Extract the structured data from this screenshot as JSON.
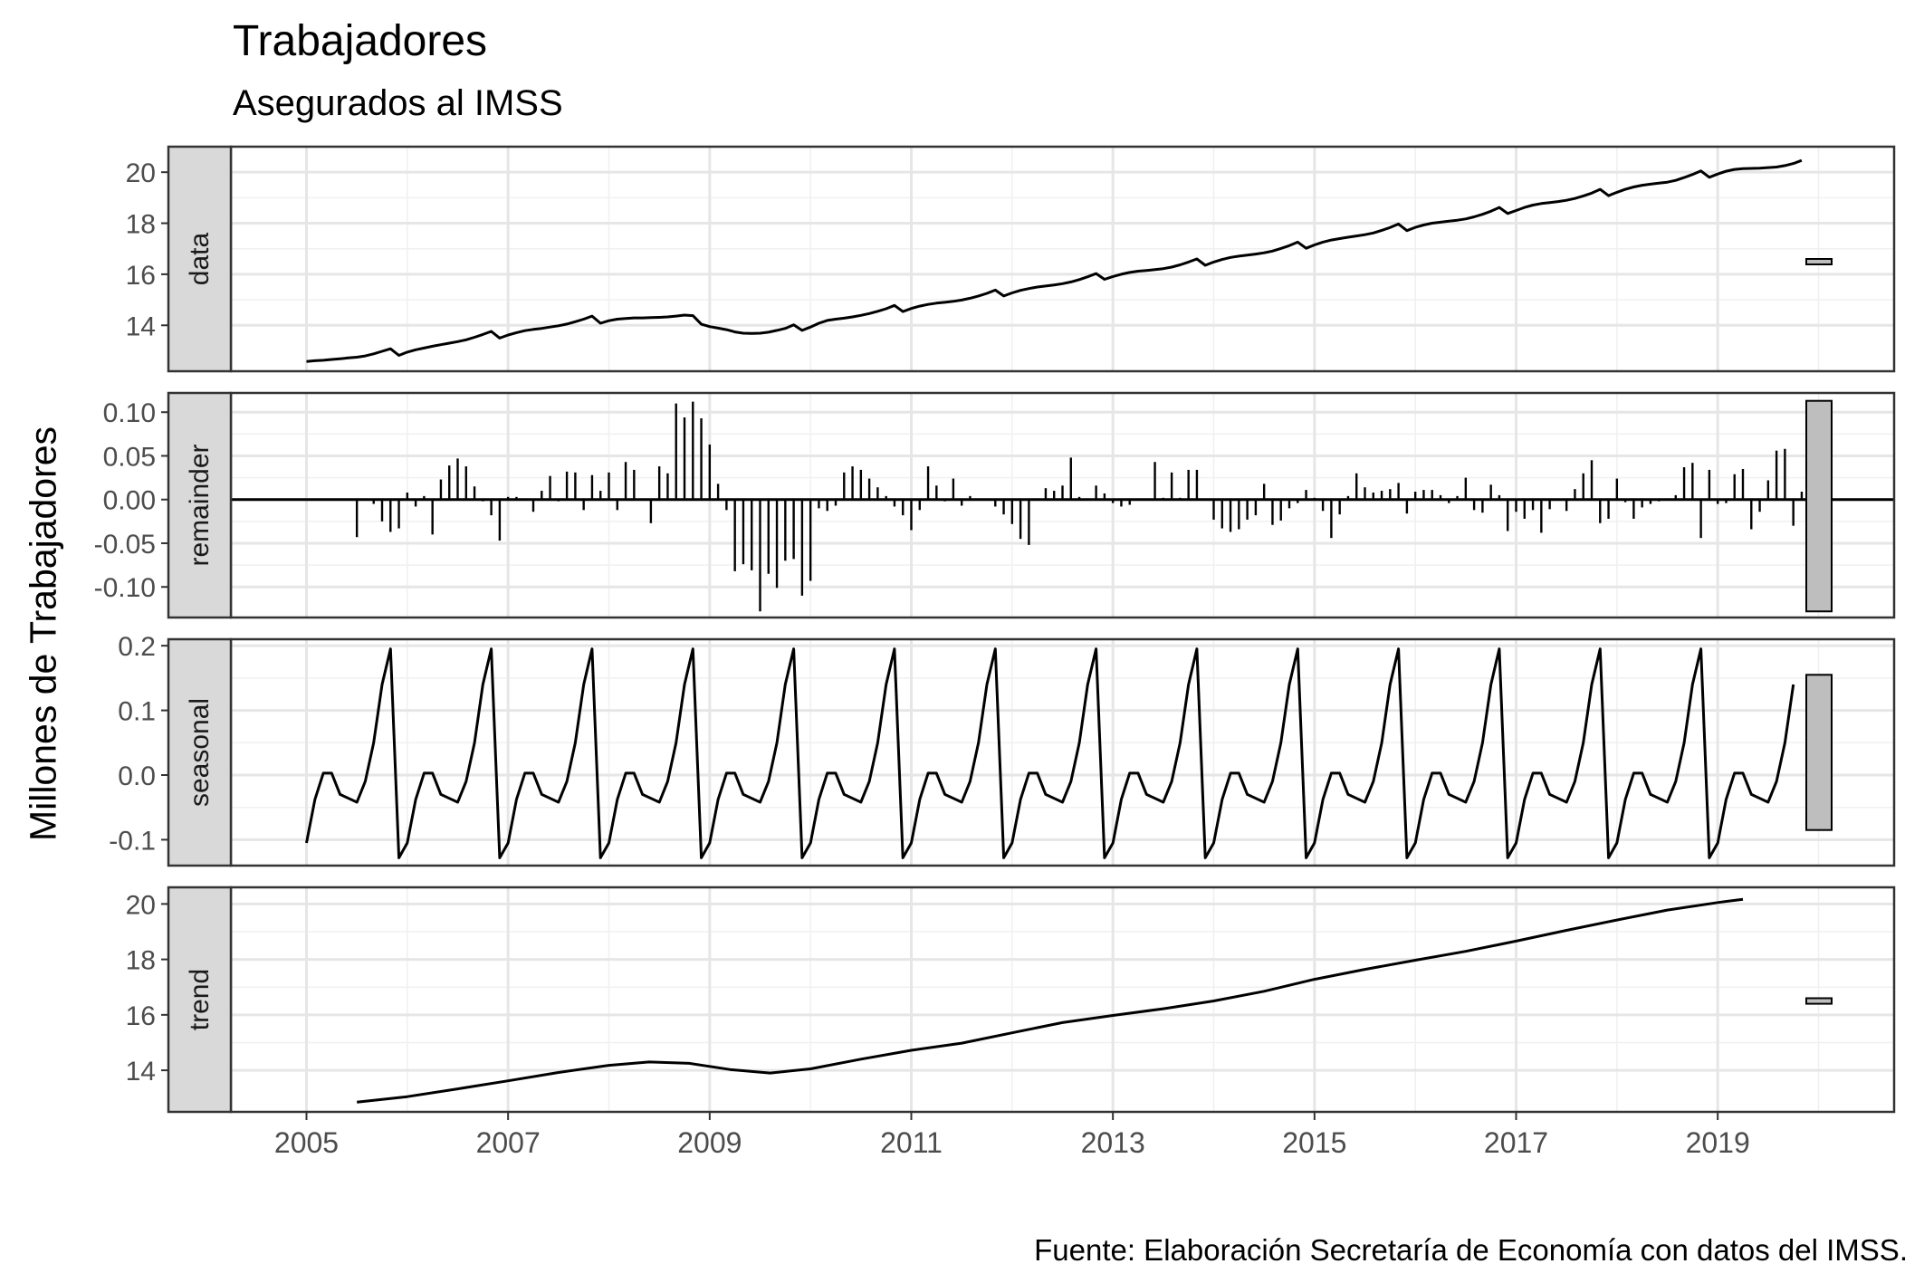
{
  "title": "Trabajadores",
  "subtitle": "Asegurados al IMSS",
  "caption": "Fuente: Elaboración Secretaría de Economía con datos del IMSS.",
  "ylabel": "Millones de Trabajadores",
  "chart_data": {
    "type": "line",
    "title": "Trabajadores",
    "subtitle": "Asegurados al IMSS",
    "ylabel": "Millones de Trabajadores",
    "x_ticks": [
      "2005",
      "2007",
      "2009",
      "2011",
      "2013",
      "2015",
      "2017",
      "2019"
    ],
    "xlim": [
      2004.25,
      2020.75
    ],
    "start": 2005.0,
    "frequency": 12,
    "grid": true,
    "panels": [
      {
        "name": "data",
        "type": "line",
        "ylim": [
          12.2,
          21.0
        ],
        "y_ticks": [
          "14",
          "16",
          "18",
          "20"
        ],
        "tick_values": [
          14,
          16,
          18,
          20
        ],
        "scale_bar": [
          16.4,
          16.6
        ],
        "values": [
          12.58,
          12.61,
          12.63,
          12.66,
          12.69,
          12.72,
          12.75,
          12.8,
          12.88,
          12.98,
          13.08,
          12.82,
          12.95,
          13.04,
          13.11,
          13.18,
          13.24,
          13.3,
          13.36,
          13.43,
          13.53,
          13.64,
          13.76,
          13.5,
          13.62,
          13.71,
          13.79,
          13.84,
          13.88,
          13.93,
          13.98,
          14.05,
          14.14,
          14.24,
          14.36,
          14.08,
          14.18,
          14.24,
          14.27,
          14.29,
          14.29,
          14.3,
          14.31,
          14.33,
          14.36,
          14.4,
          14.38,
          14.04,
          13.95,
          13.89,
          13.83,
          13.74,
          13.69,
          13.68,
          13.69,
          13.73,
          13.8,
          13.88,
          14.02,
          13.8,
          13.93,
          14.08,
          14.19,
          14.24,
          14.28,
          14.33,
          14.39,
          14.46,
          14.55,
          14.65,
          14.78,
          14.54,
          14.66,
          14.75,
          14.82,
          14.87,
          14.9,
          14.94,
          14.99,
          15.06,
          15.15,
          15.25,
          15.38,
          15.15,
          15.27,
          15.37,
          15.44,
          15.5,
          15.54,
          15.58,
          15.63,
          15.7,
          15.79,
          15.9,
          16.03,
          15.8,
          15.91,
          16.0,
          16.07,
          16.12,
          16.15,
          16.18,
          16.22,
          16.28,
          16.37,
          16.48,
          16.6,
          16.35,
          16.48,
          16.58,
          16.66,
          16.71,
          16.75,
          16.79,
          16.84,
          16.91,
          17.01,
          17.12,
          17.26,
          17.02,
          17.15,
          17.26,
          17.34,
          17.4,
          17.45,
          17.5,
          17.55,
          17.62,
          17.72,
          17.83,
          17.97,
          17.71,
          17.84,
          17.93,
          18.0,
          18.04,
          18.08,
          18.12,
          18.17,
          18.25,
          18.35,
          18.47,
          18.62,
          18.38,
          18.5,
          18.62,
          18.71,
          18.77,
          18.81,
          18.85,
          18.9,
          18.97,
          19.07,
          19.18,
          19.33,
          19.08,
          19.21,
          19.33,
          19.42,
          19.49,
          19.53,
          19.57,
          19.61,
          19.68,
          19.79,
          19.91,
          20.05,
          19.8,
          19.93,
          20.04,
          20.11,
          20.14,
          20.15,
          20.16,
          20.18,
          20.2,
          20.26,
          20.34,
          20.46
        ]
      },
      {
        "name": "remainder",
        "type": "bar",
        "ylim": [
          -0.135,
          0.122
        ],
        "y_ticks": [
          "0.10",
          "0.05",
          "0.00",
          "-0.05",
          "-0.10"
        ],
        "tick_values": [
          0.1,
          0.05,
          0.0,
          -0.05,
          -0.1
        ],
        "scale_bar": [
          -0.128,
          0.113
        ],
        "values_start": 2005.5,
        "values": [
          -0.043,
          0.0,
          -0.005,
          -0.025,
          -0.037,
          -0.033,
          0.008,
          -0.008,
          0.004,
          -0.04,
          0.023,
          0.039,
          0.047,
          0.038,
          0.015,
          -0.002,
          -0.018,
          -0.047,
          0.003,
          0.003,
          0.001,
          -0.014,
          0.01,
          0.027,
          -0.002,
          0.032,
          0.031,
          -0.012,
          0.028,
          0.01,
          0.031,
          -0.012,
          0.043,
          0.034,
          0.001,
          -0.027,
          0.038,
          0.03,
          0.11,
          0.094,
          0.112,
          0.093,
          0.063,
          0.018,
          -0.012,
          -0.082,
          -0.074,
          -0.081,
          -0.128,
          -0.085,
          -0.101,
          -0.07,
          -0.068,
          -0.11,
          -0.093,
          -0.01,
          -0.013,
          -0.007,
          0.031,
          0.038,
          0.034,
          0.024,
          0.014,
          0.004,
          -0.008,
          -0.018,
          -0.035,
          -0.012,
          0.038,
          0.016,
          -0.002,
          0.024,
          -0.007,
          0.004,
          0.001,
          0.0,
          -0.008,
          -0.017,
          -0.028,
          -0.045,
          -0.052,
          0.001,
          0.013,
          0.01,
          0.016,
          0.048,
          0.003,
          0.0,
          0.016,
          0.007,
          -0.004,
          -0.008,
          -0.006,
          0.001,
          0.0,
          0.043,
          0.002,
          0.031,
          0.002,
          0.034,
          0.034,
          -0.001,
          -0.023,
          -0.033,
          -0.037,
          -0.034,
          -0.023,
          -0.018,
          0.018,
          -0.029,
          -0.024,
          -0.01,
          -0.004,
          0.011,
          0.002,
          -0.013,
          -0.044,
          -0.017,
          0.004,
          0.03,
          0.014,
          0.008,
          0.01,
          0.012,
          0.019,
          -0.016,
          0.009,
          0.011,
          0.011,
          0.005,
          -0.004,
          0.004,
          0.025,
          -0.012,
          -0.015,
          0.017,
          0.005,
          -0.036,
          -0.014,
          -0.022,
          -0.012,
          -0.038,
          -0.011,
          0.0,
          -0.013,
          0.012,
          0.03,
          0.045,
          -0.027,
          -0.022,
          0.024,
          -0.003,
          -0.022,
          -0.009,
          -0.005,
          -0.002,
          -0.001,
          0.005,
          0.037,
          0.042,
          -0.044,
          0.034,
          -0.005,
          -0.004,
          0.029,
          0.035,
          -0.034,
          -0.014,
          0.022,
          0.056,
          0.058,
          -0.03,
          0.009,
          0.028,
          0.008,
          0.009
        ]
      },
      {
        "name": "seasonal",
        "type": "line",
        "ylim": [
          -0.14,
          0.21
        ],
        "y_ticks": [
          "0.2",
          "0.1",
          "0.0",
          "-0.1"
        ],
        "tick_values": [
          0.2,
          0.1,
          0.0,
          -0.1
        ],
        "scale_bar": [
          -0.085,
          0.155
        ],
        "pattern": [
          -0.105,
          -0.038,
          0.003,
          0.003,
          -0.03,
          -0.036,
          -0.042,
          -0.01,
          0.05,
          0.14,
          0.195,
          -0.128
        ],
        "end": 2019.83,
        "last_value": 0.135
      },
      {
        "name": "trend",
        "type": "line",
        "ylim": [
          12.5,
          20.6
        ],
        "y_ticks": [
          "20",
          "18",
          "16",
          "14"
        ],
        "tick_values": [
          20,
          18,
          16,
          14
        ],
        "scale_bar": [
          16.4,
          16.6
        ],
        "knots": [
          [
            2005.5,
            12.85
          ],
          [
            2006.0,
            13.05
          ],
          [
            2006.5,
            13.33
          ],
          [
            2007.0,
            13.62
          ],
          [
            2007.5,
            13.92
          ],
          [
            2008.0,
            14.18
          ],
          [
            2008.4,
            14.3
          ],
          [
            2008.8,
            14.25
          ],
          [
            2009.2,
            14.03
          ],
          [
            2009.6,
            13.9
          ],
          [
            2010.0,
            14.05
          ],
          [
            2010.5,
            14.4
          ],
          [
            2011.0,
            14.72
          ],
          [
            2011.5,
            14.98
          ],
          [
            2012.0,
            15.35
          ],
          [
            2012.5,
            15.72
          ],
          [
            2013.0,
            15.98
          ],
          [
            2013.5,
            16.22
          ],
          [
            2014.0,
            16.5
          ],
          [
            2014.5,
            16.85
          ],
          [
            2015.0,
            17.28
          ],
          [
            2015.5,
            17.64
          ],
          [
            2016.0,
            17.97
          ],
          [
            2016.5,
            18.29
          ],
          [
            2017.0,
            18.66
          ],
          [
            2017.5,
            19.05
          ],
          [
            2018.0,
            19.42
          ],
          [
            2018.5,
            19.78
          ],
          [
            2019.0,
            20.05
          ],
          [
            2019.25,
            20.17
          ]
        ]
      }
    ]
  }
}
